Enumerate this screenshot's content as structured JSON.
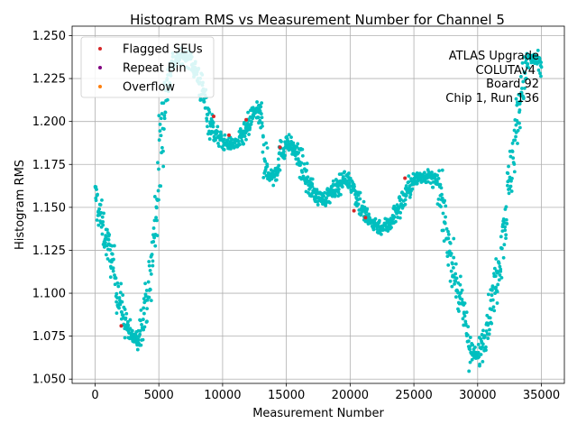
{
  "chart_data": {
    "type": "scatter",
    "title": "Histogram RMS vs Measurement Number for Channel 5",
    "xlabel": "Measurement Number",
    "ylabel": "Histogram RMS",
    "xlim": [
      -1800,
      36800
    ],
    "ylim": [
      1.0475,
      1.2555
    ],
    "xticks": [
      0,
      5000,
      10000,
      15000,
      20000,
      25000,
      30000,
      35000
    ],
    "xtick_labels": [
      "0",
      "5000",
      "10000",
      "15000",
      "20000",
      "25000",
      "30000",
      "35000"
    ],
    "yticks": [
      1.05,
      1.075,
      1.1,
      1.125,
      1.15,
      1.175,
      1.2,
      1.225,
      1.25
    ],
    "ytick_labels": [
      "1.050",
      "1.075",
      "1.100",
      "1.125",
      "1.150",
      "1.175",
      "1.200",
      "1.225",
      "1.250"
    ],
    "grid": true,
    "legend_position": "top-left",
    "main_color": "#00bfbf",
    "main_trend": {
      "x": [
        0,
        300,
        800,
        1300,
        1800,
        2300,
        2800,
        3300,
        3700,
        4000,
        4300,
        4600,
        4900,
        5200,
        5500,
        6000,
        6500,
        7000,
        7500,
        8000,
        8500,
        9000,
        9500,
        10000,
        10500,
        11000,
        11500,
        12000,
        12500,
        13000,
        13500,
        14000,
        14500,
        15000,
        15500,
        16000,
        16500,
        17000,
        17500,
        18000,
        18500,
        19000,
        19500,
        20000,
        20500,
        21000,
        21500,
        22000,
        22500,
        23000,
        23500,
        24000,
        24500,
        25000,
        25500,
        26000,
        26500,
        27000,
        27500,
        28000,
        28500,
        29000,
        29500,
        30000,
        30500,
        31000,
        31500,
        32000,
        32500,
        33000,
        33500,
        34000,
        34500,
        35000
      ],
      "y": [
        1.158,
        1.148,
        1.133,
        1.12,
        1.1,
        1.085,
        1.075,
        1.073,
        1.085,
        1.095,
        1.105,
        1.13,
        1.16,
        1.19,
        1.215,
        1.233,
        1.237,
        1.238,
        1.236,
        1.228,
        1.215,
        1.2,
        1.192,
        1.188,
        1.187,
        1.187,
        1.19,
        1.196,
        1.206,
        1.202,
        1.17,
        1.168,
        1.18,
        1.188,
        1.185,
        1.178,
        1.168,
        1.16,
        1.156,
        1.155,
        1.158,
        1.162,
        1.167,
        1.165,
        1.158,
        1.148,
        1.142,
        1.14,
        1.138,
        1.14,
        1.146,
        1.152,
        1.16,
        1.165,
        1.168,
        1.168,
        1.167,
        1.16,
        1.138,
        1.118,
        1.1,
        1.085,
        1.065,
        1.063,
        1.075,
        1.09,
        1.11,
        1.135,
        1.165,
        1.195,
        1.22,
        1.236,
        1.236,
        1.23
      ]
    },
    "series": [
      {
        "name": "Flagged SEUs",
        "color": "#d62728",
        "x": [
          2050,
          9300,
          10500,
          11850,
          14500,
          20300,
          21200,
          24300
        ],
        "y": [
          1.081,
          1.203,
          1.192,
          1.201,
          1.185,
          1.148,
          1.144,
          1.167
        ]
      },
      {
        "name": "Repeat Bin",
        "color": "#800080",
        "x": [],
        "y": []
      },
      {
        "name": "Overflow",
        "color": "#ff7f0e",
        "x": [],
        "y": []
      }
    ],
    "annotation": {
      "lines": [
        "ATLAS Upgrade",
        "COLUTAv4",
        "Board 92",
        "Chip 1, Run 136"
      ]
    }
  }
}
